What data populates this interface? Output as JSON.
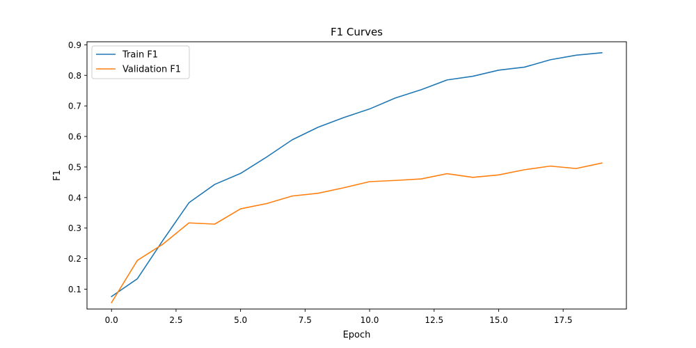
{
  "chart_data": {
    "type": "line",
    "title": "F1 Curves",
    "xlabel": "Epoch",
    "ylabel": "F1",
    "x": [
      0,
      1,
      2,
      3,
      4,
      5,
      6,
      7,
      8,
      9,
      10,
      11,
      12,
      13,
      14,
      15,
      16,
      17,
      18,
      19
    ],
    "xlim": [
      -0.95,
      19.95
    ],
    "ylim": [
      0.035,
      0.91
    ],
    "xticks": [
      0.0,
      2.5,
      5.0,
      7.5,
      10.0,
      12.5,
      15.0,
      17.5
    ],
    "xtick_labels": [
      "0.0",
      "2.5",
      "5.0",
      "7.5",
      "10.0",
      "12.5",
      "15.0",
      "17.5"
    ],
    "yticks": [
      0.1,
      0.2,
      0.3,
      0.4,
      0.5,
      0.6,
      0.7,
      0.8,
      0.9
    ],
    "ytick_labels": [
      "0.1",
      "0.2",
      "0.3",
      "0.4",
      "0.5",
      "0.6",
      "0.7",
      "0.8",
      "0.9"
    ],
    "grid": false,
    "legend_position": "top-left",
    "series": [
      {
        "name": "Train F1",
        "color": "#1f77b4",
        "values": [
          0.076,
          0.134,
          0.261,
          0.383,
          0.443,
          0.479,
          0.532,
          0.589,
          0.63,
          0.662,
          0.69,
          0.726,
          0.753,
          0.785,
          0.797,
          0.817,
          0.827,
          0.851,
          0.866,
          0.874
        ]
      },
      {
        "name": "Validation F1",
        "color": "#ff7f0e",
        "values": [
          0.056,
          0.194,
          0.248,
          0.317,
          0.313,
          0.363,
          0.38,
          0.405,
          0.414,
          0.432,
          0.452,
          0.456,
          0.461,
          0.478,
          0.466,
          0.474,
          0.491,
          0.503,
          0.495,
          0.513
        ]
      }
    ]
  }
}
